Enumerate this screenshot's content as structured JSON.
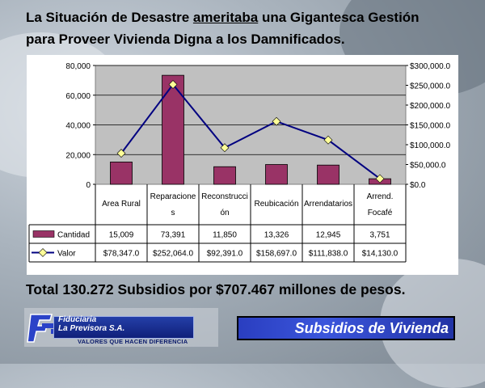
{
  "title": {
    "line1_a": "La Situación de Desastre ",
    "line1_b": "ameritaba",
    "line1_c": " una Gigantesca Gestión",
    "line2": "para Proveer Vivienda Digna a los Damnificados."
  },
  "total_text": "Total 130.272 Subsidios por $707.467 millones de pesos.",
  "logo": {
    "line1": "Fiduciaria",
    "line2": "La Previsora S.A.",
    "slogan": "VALORES QUE HACEN DIFERENCIA"
  },
  "button_label": "Subsidios de Vivienda",
  "colors": {
    "bar": "#993366",
    "line": "#000080",
    "marker": "#ffff99",
    "plot_bg": "#c0c0c0"
  },
  "chart_data": {
    "type": "bar",
    "categories": [
      "Area Rural",
      "Reparaciones",
      "Reconstrucción",
      "Reubicación",
      "Arrendatarios",
      "Arrend. Focafé"
    ],
    "category_lines": [
      [
        "Area Rural"
      ],
      [
        "Reparacione",
        "s"
      ],
      [
        "Reconstrucci",
        "ón"
      ],
      [
        "Reubicación"
      ],
      [
        "Arrendatarios"
      ],
      [
        "Arrend.",
        "Focafé"
      ]
    ],
    "series": [
      {
        "name": "Cantidad",
        "type": "bar",
        "axis": "left",
        "values": [
          15009,
          73391,
          11850,
          13326,
          12945,
          3751
        ],
        "labels": [
          "15,009",
          "73,391",
          "11,850",
          "13,326",
          "12,945",
          "3,751"
        ]
      },
      {
        "name": "Valor",
        "type": "line",
        "axis": "right",
        "values": [
          78347.0,
          252064.0,
          92391.0,
          158697.0,
          111838.0,
          14130.0
        ],
        "labels": [
          "$78,347.0",
          "$252,064.0",
          "$92,391.0",
          "$158,697.0",
          "$111,838.0",
          "$14,130.0"
        ]
      }
    ],
    "y_left": {
      "lim": [
        0,
        80000
      ],
      "ticks": [
        "0",
        "20,000",
        "40,000",
        "60,000",
        "80,000"
      ],
      "values": [
        0,
        20000,
        40000,
        60000,
        80000
      ]
    },
    "y_right": {
      "lim": [
        0,
        300000
      ],
      "ticks": [
        "$0.0",
        "$50,000.0",
        "$100,000.0",
        "$150,000.0",
        "$200,000.0",
        "$250,000.0",
        "$300,000.0"
      ],
      "values": [
        0,
        50000,
        100000,
        150000,
        200000,
        250000,
        300000
      ]
    },
    "grid": true,
    "legend": "data-table"
  }
}
